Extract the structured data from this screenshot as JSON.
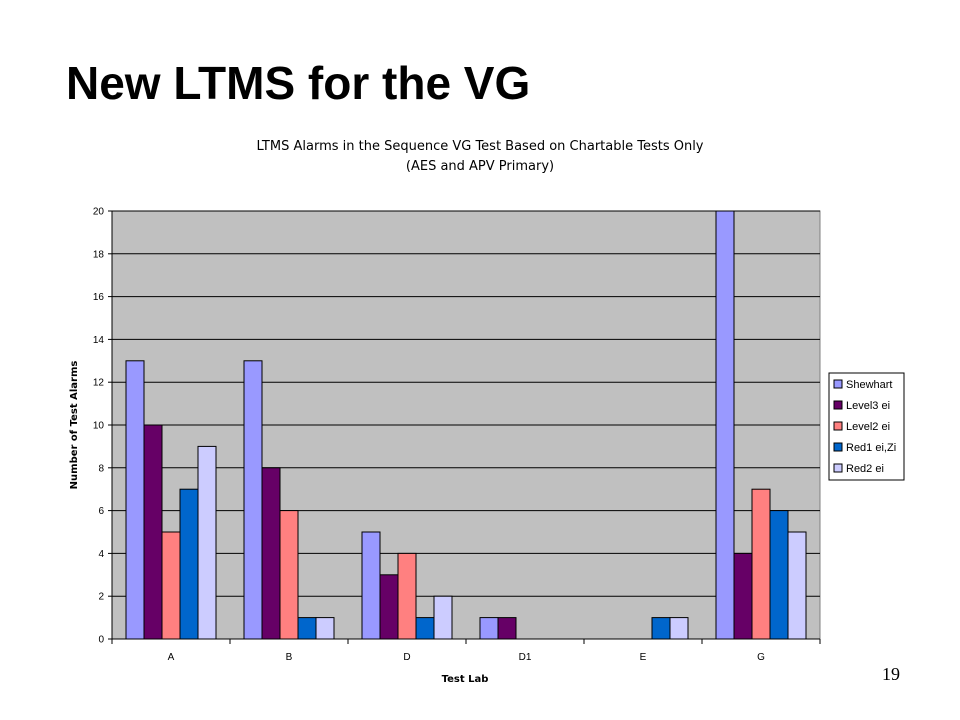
{
  "slide": {
    "title": "New LTMS for the VG",
    "page_number": "19"
  },
  "chart_data": {
    "type": "bar",
    "title": "LTMS Alarms in the Sequence VG Test Based on Chartable Tests Only",
    "subtitle": "(AES and APV Primary)",
    "xlabel": "Test Lab",
    "ylabel": "Number of Test Alarms",
    "ylim": [
      0,
      20
    ],
    "yticks": [
      0,
      2,
      4,
      6,
      8,
      10,
      12,
      14,
      16,
      18,
      20
    ],
    "categories": [
      "A",
      "B",
      "D",
      "D1",
      "E",
      "G"
    ],
    "grid": true,
    "legend_position": "right",
    "plot_background": "#c0c0c0",
    "series": [
      {
        "name": "Shewhart",
        "color": "#9999ff",
        "values": [
          13,
          13,
          5,
          1,
          0,
          20
        ]
      },
      {
        "name": "Level3 ei",
        "color": "#660066",
        "values": [
          10,
          8,
          3,
          1,
          0,
          4
        ]
      },
      {
        "name": "Level2 ei",
        "color": "#ff8080",
        "values": [
          5,
          6,
          4,
          0,
          0,
          7
        ]
      },
      {
        "name": "Red1 ei,Zi",
        "color": "#0066cc",
        "values": [
          7,
          1,
          1,
          0,
          1,
          6
        ]
      },
      {
        "name": "Red2 ei",
        "color": "#ccccff",
        "values": [
          9,
          1,
          2,
          0,
          1,
          5
        ]
      }
    ]
  }
}
